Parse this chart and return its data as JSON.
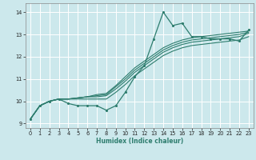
{
  "bg_color": "#cce8ec",
  "grid_color": "#ffffff",
  "line_color": "#2e7d6e",
  "xlabel": "Humidex (Indice chaleur)",
  "ylim": [
    8.8,
    14.4
  ],
  "xlim": [
    -0.5,
    23.5
  ],
  "yticks": [
    9,
    10,
    11,
    12,
    13,
    14
  ],
  "xticks": [
    0,
    1,
    2,
    3,
    4,
    5,
    6,
    7,
    8,
    9,
    10,
    11,
    12,
    13,
    14,
    15,
    16,
    17,
    18,
    19,
    20,
    21,
    22,
    23
  ],
  "series": [
    [
      9.2,
      9.8,
      10.0,
      10.1,
      9.9,
      9.8,
      9.8,
      9.8,
      9.6,
      9.8,
      10.4,
      11.1,
      11.6,
      12.8,
      14.0,
      13.4,
      13.5,
      12.9,
      12.9,
      12.8,
      12.8,
      12.8,
      12.7,
      13.2
    ],
    [
      9.2,
      9.8,
      10.0,
      10.1,
      10.1,
      10.15,
      10.2,
      10.3,
      10.35,
      10.7,
      11.1,
      11.5,
      11.8,
      12.1,
      12.4,
      12.6,
      12.75,
      12.85,
      12.9,
      12.95,
      13.0,
      13.05,
      13.1,
      13.15
    ],
    [
      9.2,
      9.8,
      10.0,
      10.1,
      10.1,
      10.15,
      10.2,
      10.25,
      10.3,
      10.65,
      11.0,
      11.4,
      11.7,
      12.0,
      12.3,
      12.5,
      12.65,
      12.75,
      12.8,
      12.85,
      12.9,
      12.95,
      13.0,
      13.1
    ],
    [
      9.2,
      9.8,
      10.0,
      10.1,
      10.1,
      10.15,
      10.2,
      10.2,
      10.25,
      10.55,
      10.9,
      11.3,
      11.6,
      11.9,
      12.2,
      12.4,
      12.55,
      12.65,
      12.7,
      12.75,
      12.8,
      12.85,
      12.9,
      13.05
    ],
    [
      9.2,
      9.8,
      10.0,
      10.1,
      10.1,
      10.1,
      10.1,
      10.1,
      10.1,
      10.4,
      10.75,
      11.15,
      11.45,
      11.75,
      12.05,
      12.25,
      12.4,
      12.5,
      12.55,
      12.6,
      12.65,
      12.7,
      12.75,
      12.9
    ]
  ]
}
